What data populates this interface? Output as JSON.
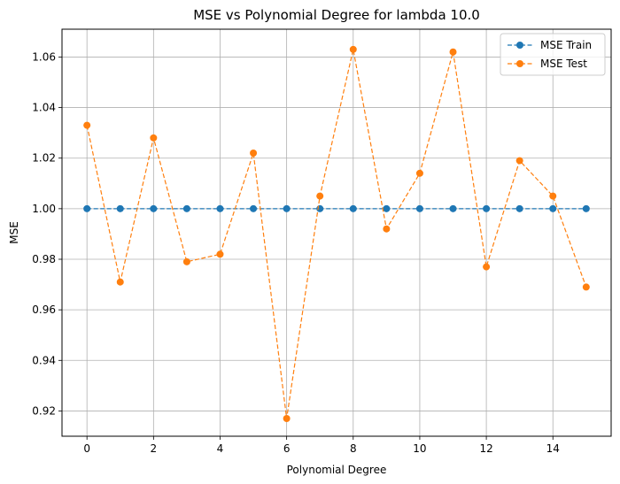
{
  "chart_data": {
    "type": "line",
    "title": "MSE vs Polynomial Degree for lambda 10.0",
    "xlabel": "Polynomial Degree",
    "ylabel": "MSE",
    "x": [
      0,
      1,
      2,
      3,
      4,
      5,
      6,
      7,
      8,
      9,
      10,
      11,
      12,
      13,
      14,
      15
    ],
    "xlim": [
      -0.75,
      15.75
    ],
    "ylim": [
      0.91,
      1.071
    ],
    "xticks": [
      0,
      2,
      4,
      6,
      8,
      10,
      12,
      14
    ],
    "xtick_labels": [
      "0",
      "2",
      "4",
      "6",
      "8",
      "10",
      "12",
      "14"
    ],
    "yticks": [
      0.92,
      0.94,
      0.96,
      0.98,
      1.0,
      1.02,
      1.04,
      1.06
    ],
    "ytick_labels": [
      "0.92",
      "0.94",
      "0.96",
      "0.98",
      "1.00",
      "1.02",
      "1.04",
      "1.06"
    ],
    "grid": true,
    "legend_position": "top-right",
    "series": [
      {
        "name": "MSE Train",
        "color": "#1f77b4",
        "line_style": "dashed",
        "marker": "circle",
        "values": [
          1.0,
          1.0,
          1.0,
          1.0,
          1.0,
          1.0,
          1.0,
          1.0,
          1.0,
          1.0,
          1.0,
          1.0,
          1.0,
          1.0,
          1.0,
          1.0
        ]
      },
      {
        "name": "MSE Test",
        "color": "#ff7f0e",
        "line_style": "dashed",
        "marker": "circle",
        "values": [
          1.033,
          0.971,
          1.028,
          0.979,
          0.982,
          1.022,
          0.917,
          1.005,
          1.063,
          0.992,
          1.014,
          1.062,
          0.977,
          1.019,
          1.005,
          0.969
        ]
      }
    ]
  }
}
